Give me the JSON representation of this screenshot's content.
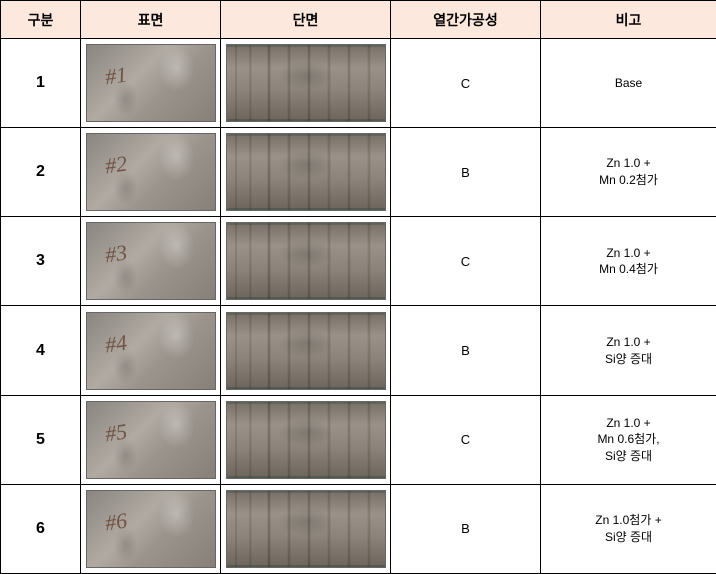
{
  "headers": {
    "gubun": "구분",
    "surface": "표면",
    "section": "단면",
    "workability": "열간가공성",
    "note": "비고"
  },
  "header_bg": "#fce8dc",
  "rows": [
    {
      "id": "1",
      "surface_label": "#1",
      "workability": "C",
      "note": "Base"
    },
    {
      "id": "2",
      "surface_label": "#2",
      "workability": "B",
      "note": "Zn 1.0 +\nMn 0.2첨가"
    },
    {
      "id": "3",
      "surface_label": "#3",
      "workability": "C",
      "note": "Zn 1.0 +\nMn 0.4첨가"
    },
    {
      "id": "4",
      "surface_label": "#4",
      "workability": "B",
      "note": "Zn 1.0 +\nSi양 증대"
    },
    {
      "id": "5",
      "surface_label": "#5",
      "workability": "C",
      "note": "Zn 1.0 +\nMn 0.6첨가,\nSi양 증대"
    },
    {
      "id": "6",
      "surface_label": "#6",
      "workability": "B",
      "note": "Zn 1.0첨가 +\nSi양 증대"
    }
  ]
}
